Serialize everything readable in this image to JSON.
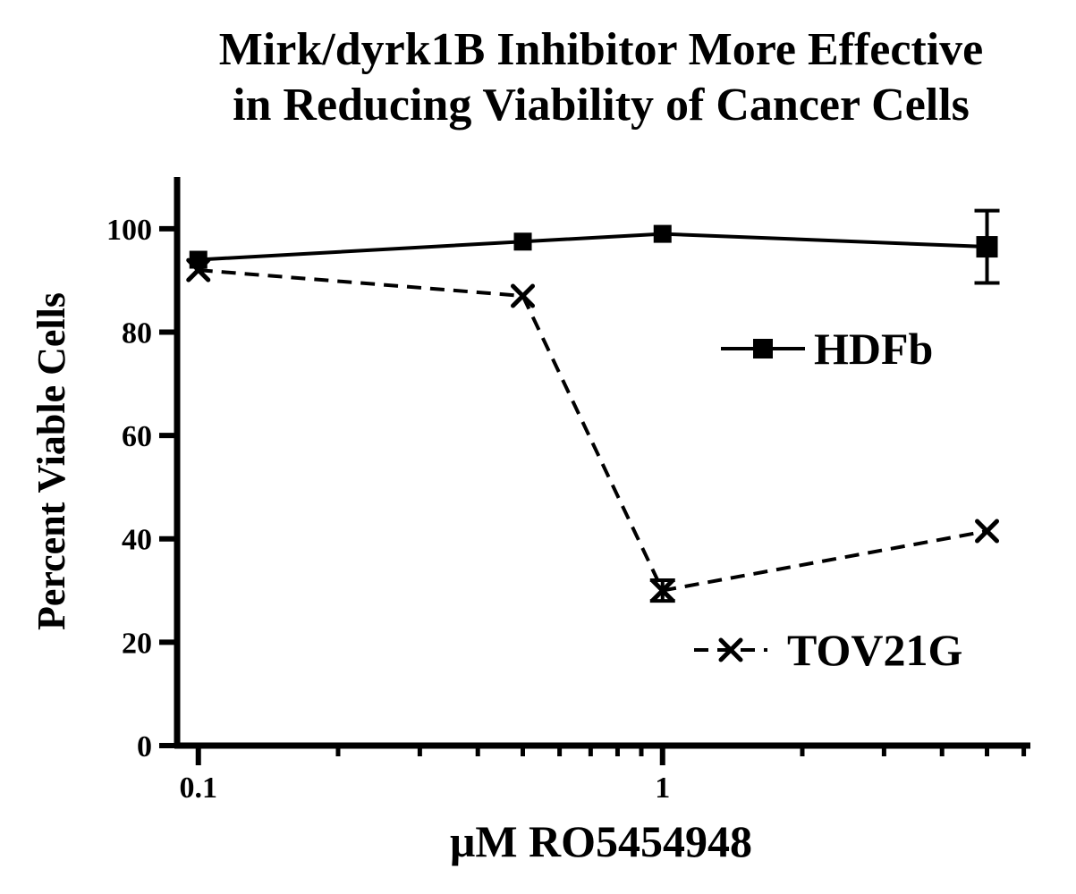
{
  "chart_data": {
    "type": "line",
    "title": [
      "Mirk/dyrk1B Inhibitor More Effective",
      "in Reducing Viability of Cancer Cells"
    ],
    "xlabel": "μM RO5454948",
    "ylabel": "Percent Viable Cells",
    "xscale": "log",
    "xlim": [
      0.09,
      6.2
    ],
    "ylim": [
      0,
      110
    ],
    "x_ticks": [
      {
        "value": 0.1,
        "label": "0.1"
      },
      {
        "value": 1,
        "label": "1"
      }
    ],
    "y_ticks": [
      0,
      20,
      40,
      60,
      80,
      100
    ],
    "grid": false,
    "legend_position": "right",
    "series": [
      {
        "name": "HDFb",
        "x": [
          0.1,
          0.5,
          1,
          5
        ],
        "values": [
          94,
          97.5,
          99,
          96.5
        ],
        "errors": [
          1,
          1,
          1,
          7
        ],
        "marker": "square",
        "line_style": "solid",
        "color": "#000000"
      },
      {
        "name": "TOV21G",
        "x": [
          0.1,
          0.5,
          1,
          5
        ],
        "values": [
          92,
          87,
          30,
          41.5
        ],
        "errors": [
          1,
          1.5,
          2,
          1
        ],
        "marker": "x",
        "line_style": "dashed",
        "color": "#000000"
      }
    ]
  }
}
